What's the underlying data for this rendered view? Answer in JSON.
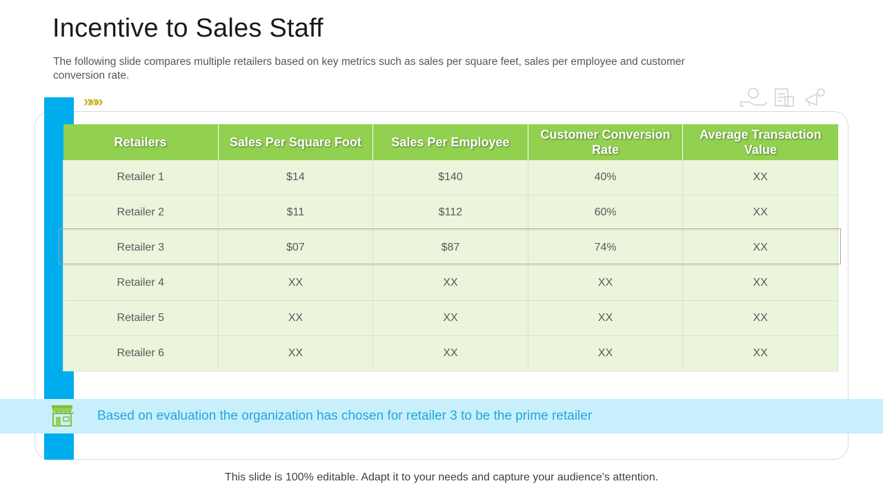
{
  "slide": {
    "title": "Incentive to Sales Staff",
    "subtitle": "The following  slide compares multiple retailers based on key metrics such as sales per square feet, sales per employee  and customer conversion rate.",
    "chevrons": "»»»",
    "decoration_icons": [
      "percent-hand-icon",
      "document-money-icon",
      "megaphone-icon"
    ],
    "accent_colors": {
      "blue": "#00adef",
      "green": "#92d050",
      "row_bg": "#ebf5dc",
      "banner_bg": "#c9effc",
      "banner_text": "#1fa7dc"
    }
  },
  "table": {
    "headers": [
      "Retailers",
      "Sales Per Square Foot",
      "Sales Per Employee",
      "Customer Conversion Rate",
      "Average Transaction Value"
    ],
    "rows": [
      [
        "Retailer 1",
        "$14",
        "$140",
        "40%",
        "XX"
      ],
      [
        "Retailer 2",
        "$11",
        "$112",
        "60%",
        "XX"
      ],
      [
        "Retailer 3",
        "$07",
        "$87",
        "74%",
        "XX"
      ],
      [
        "Retailer 4",
        "XX",
        "XX",
        "XX",
        "XX"
      ],
      [
        "Retailer 5",
        "XX",
        "XX",
        "XX",
        "XX"
      ],
      [
        "Retailer 6",
        "XX",
        "XX",
        "XX",
        "XX"
      ]
    ],
    "highlighted_row": "Retailer 3"
  },
  "banner": {
    "icon": "store-icon",
    "text": "Based on evaluation the organization has chosen for retailer 3 to be the prime retailer"
  },
  "footer": {
    "text": "This slide is 100% editable. Adapt it to your needs and capture your audience's attention."
  }
}
